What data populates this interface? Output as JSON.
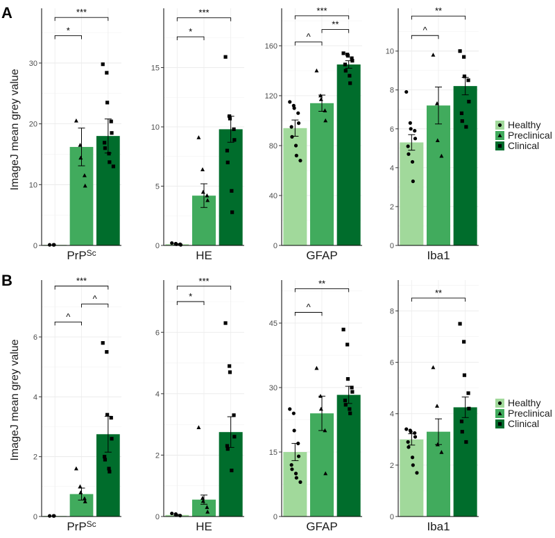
{
  "legend": {
    "entries": [
      {
        "label": "Healthy",
        "color": "#a1d99b",
        "shape": "circle"
      },
      {
        "label": "Preclinical",
        "color": "#41ab5d",
        "shape": "triangle"
      },
      {
        "label": "Clinical",
        "color": "#006d2c",
        "shape": "square"
      }
    ]
  },
  "chart_data": [
    {
      "type": "bar",
      "panel": "A",
      "ylabel": "ImageJ mean grey value",
      "panels": [
        {
          "xlabel": "PrP",
          "xlabel_sup": "Sc",
          "ylim": [
            0,
            39
          ],
          "yticks": [
            0,
            10,
            20,
            30
          ],
          "groups": [
            {
              "name": "Healthy",
              "mean": 0.1,
              "se": 0,
              "points": [
                0.1,
                0.1,
                0.1
              ]
            },
            {
              "name": "Preclinical",
              "mean": 16.2,
              "se": 3.1,
              "points": [
                20.5,
                16.5,
                14.4,
                11.5,
                9.8
              ]
            },
            {
              "name": "Clinical",
              "mean": 18.0,
              "se": 2.8,
              "points": [
                29.8,
                28.4,
                23.5,
                20.4,
                18.5,
                16.9,
                16.0,
                15.1,
                13.7,
                13.0
              ]
            }
          ],
          "comparisons": [
            {
              "from": 0,
              "to": 1,
              "label": "*",
              "y": 34.5
            },
            {
              "from": 0,
              "to": 2,
              "label": "***",
              "y": 37.5
            }
          ]
        },
        {
          "xlabel": "HE",
          "xlabel_sup": "",
          "ylim": [
            0,
            20
          ],
          "yticks": [
            0,
            5,
            10,
            15
          ],
          "groups": [
            {
              "name": "Healthy",
              "mean": 0.1,
              "se": 0.05,
              "points": [
                0.2,
                0.15,
                0.1,
                0.1,
                0.05
              ]
            },
            {
              "name": "Preclinical",
              "mean": 4.2,
              "se": 1.0,
              "points": [
                9.1,
                6.4,
                4.5,
                4.2,
                3.8
              ]
            },
            {
              "name": "Clinical",
              "mean": 9.8,
              "se": 1.1,
              "points": [
                15.9,
                10.9,
                10.7,
                9.8,
                8.9,
                8.0,
                7.0,
                4.6,
                2.8
              ]
            }
          ],
          "comparisons": [
            {
              "from": 0,
              "to": 1,
              "label": "*",
              "y": 17.6
            },
            {
              "from": 0,
              "to": 2,
              "label": "***",
              "y": 19.2
            }
          ]
        },
        {
          "xlabel": "GFAP",
          "xlabel_sup": "",
          "ylim": [
            0,
            190
          ],
          "yticks": [
            0,
            40,
            80,
            120,
            160
          ],
          "groups": [
            {
              "name": "Healthy",
              "mean": 94,
              "se": 6.5,
              "points": [
                115,
                112,
                110,
                106,
                98,
                95,
                87,
                80,
                72,
                68
              ]
            },
            {
              "name": "Preclinical",
              "mean": 114,
              "se": 6.5,
              "points": [
                140,
                120,
                117,
                108,
                100
              ]
            },
            {
              "name": "Clinical",
              "mean": 145,
              "se": 3.0,
              "points": [
                154,
                153,
                152,
                150,
                148,
                145,
                140,
                136,
                130
              ]
            }
          ],
          "comparisons": [
            {
              "from": 0,
              "to": 1,
              "label": "^",
              "y": 163
            },
            {
              "from": 1,
              "to": 2,
              "label": "**",
              "y": 173
            },
            {
              "from": 0,
              "to": 2,
              "label": "***",
              "y": 184
            }
          ]
        },
        {
          "xlabel": "Iba1",
          "xlabel_sup": "",
          "ylim": [
            0,
            12.2
          ],
          "yticks": [
            0,
            2,
            4,
            6,
            8,
            10
          ],
          "groups": [
            {
              "name": "Healthy",
              "mean": 5.3,
              "se": 0.4,
              "points": [
                7.9,
                6.3,
                6.0,
                5.9,
                5.5,
                5.1,
                4.7,
                4.3,
                3.3
              ]
            },
            {
              "name": "Preclinical",
              "mean": 7.2,
              "se": 0.95,
              "points": [
                9.8,
                7.3,
                5.4,
                4.6
              ]
            },
            {
              "name": "Clinical",
              "mean": 8.2,
              "se": 0.45,
              "points": [
                10.0,
                9.7,
                8.7,
                8.5,
                7.4,
                6.8,
                6.4,
                6.1
              ]
            }
          ],
          "comparisons": [
            {
              "from": 0,
              "to": 1,
              "label": "^",
              "y": 10.8
            },
            {
              "from": 0,
              "to": 2,
              "label": "**",
              "y": 11.8
            }
          ]
        }
      ]
    },
    {
      "type": "bar",
      "panel": "B",
      "ylabel": "ImageJ mean grey value",
      "panels": [
        {
          "xlabel": "PrP",
          "xlabel_sup": "Sc",
          "ylim": [
            0,
            7.9
          ],
          "yticks": [
            0,
            2,
            4,
            6
          ],
          "groups": [
            {
              "name": "Healthy",
              "mean": 0.02,
              "se": 0,
              "points": [
                0.02,
                0.02,
                0.02
              ]
            },
            {
              "name": "Preclinical",
              "mean": 0.75,
              "se": 0.2,
              "points": [
                1.6,
                1.0,
                0.8,
                0.6,
                0.5
              ]
            },
            {
              "name": "Clinical",
              "mean": 2.75,
              "se": 0.6,
              "points": [
                5.8,
                5.5,
                3.4,
                3.3,
                2.6,
                2.0,
                1.9,
                1.6,
                1.5
              ]
            }
          ],
          "comparisons": [
            {
              "from": 0,
              "to": 1,
              "label": "^",
              "y": 6.5
            },
            {
              "from": 1,
              "to": 2,
              "label": "^",
              "y": 7.1
            },
            {
              "from": 0,
              "to": 2,
              "label": "***",
              "y": 7.7
            }
          ]
        },
        {
          "xlabel": "HE",
          "xlabel_sup": "",
          "ylim": [
            0,
            7.7
          ],
          "yticks": [
            0,
            2,
            4,
            6
          ],
          "groups": [
            {
              "name": "Healthy",
              "mean": 0.05,
              "se": 0.02,
              "points": [
                0.1,
                0.08,
                0.05,
                0.03
              ]
            },
            {
              "name": "Preclinical",
              "mean": 0.55,
              "se": 0.15,
              "points": [
                2.9,
                0.6,
                0.5,
                0.3,
                0.15
              ]
            },
            {
              "name": "Clinical",
              "mean": 2.75,
              "se": 0.5,
              "points": [
                6.3,
                4.9,
                4.7,
                3.3,
                2.6,
                2.3,
                2.2,
                1.5
              ]
            }
          ],
          "comparisons": [
            {
              "from": 0,
              "to": 1,
              "label": "*",
              "y": 7.0
            },
            {
              "from": 0,
              "to": 2,
              "label": "***",
              "y": 7.5
            }
          ]
        },
        {
          "xlabel": "GFAP",
          "xlabel_sup": "",
          "ylim": [
            0,
            55
          ],
          "yticks": [
            0,
            15,
            30,
            45
          ],
          "groups": [
            {
              "name": "Healthy",
              "mean": 15,
              "se": 2.0,
              "points": [
                25,
                24,
                20,
                17,
                14,
                12,
                11,
                10,
                9,
                8
              ]
            },
            {
              "name": "Preclinical",
              "mean": 24,
              "se": 4.0,
              "points": [
                34.5,
                28,
                25,
                20,
                10
              ]
            },
            {
              "name": "Clinical",
              "mean": 28.3,
              "se": 2.0,
              "points": [
                43.5,
                40,
                32,
                30,
                29,
                27,
                26,
                25,
                24
              ]
            }
          ],
          "comparisons": [
            {
              "from": 0,
              "to": 1,
              "label": "^",
              "y": 47.5
            },
            {
              "from": 0,
              "to": 2,
              "label": "**",
              "y": 53
            }
          ]
        },
        {
          "xlabel": "Iba1",
          "xlabel_sup": "",
          "ylim": [
            0,
            9.2
          ],
          "yticks": [
            0,
            2,
            4,
            6,
            8
          ],
          "groups": [
            {
              "name": "Healthy",
              "mean": 3.0,
              "se": 0.22,
              "points": [
                3.4,
                3.35,
                3.3,
                3.25,
                3.1,
                2.9,
                2.7,
                2.3,
                2.0,
                1.7
              ]
            },
            {
              "name": "Preclinical",
              "mean": 3.3,
              "se": 0.5,
              "points": [
                5.8,
                4.3,
                2.8,
                2.5
              ]
            },
            {
              "name": "Clinical",
              "mean": 4.25,
              "se": 0.4,
              "points": [
                7.5,
                6.8,
                5.5,
                4.8,
                4.2,
                3.7,
                3.3,
                2.9
              ]
            }
          ],
          "comparisons": [
            {
              "from": 0,
              "to": 2,
              "label": "**",
              "y": 8.5
            }
          ]
        }
      ]
    }
  ]
}
